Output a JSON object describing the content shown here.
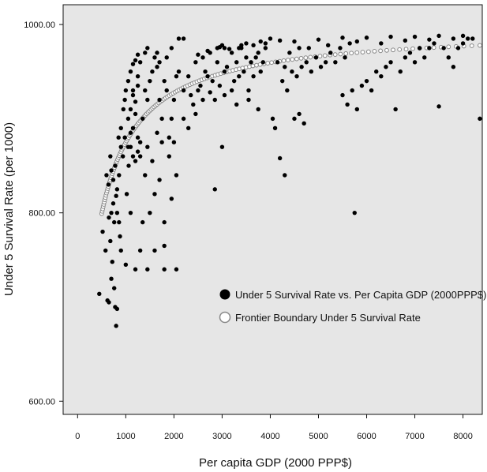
{
  "chart_data": {
    "type": "scatter",
    "title": "",
    "xlabel": "Per capita GDP (2000 PPP$)",
    "ylabel": "Under 5 Survival Rate (per 1000)",
    "xlim": [
      -300,
      8400
    ],
    "ylim": [
      586,
      1021
    ],
    "x_ticks": [
      "0",
      "1000",
      "2000",
      "3000",
      "4000",
      "5000",
      "6000",
      "7000",
      "8000"
    ],
    "y_ticks": [
      "600.00",
      "800.00",
      "1000.00"
    ],
    "grid": false,
    "legend_position": "lower-right",
    "series": [
      {
        "name": "Under 5 Survival Rate vs. Per Capita GDP (2000PPP$)",
        "color": "#000000",
        "marker": "filled-circle",
        "points": [
          [
            450,
            714
          ],
          [
            520,
            780
          ],
          [
            580,
            760
          ],
          [
            620,
            707
          ],
          [
            650,
            705
          ],
          [
            700,
            730
          ],
          [
            720,
            748
          ],
          [
            760,
            720
          ],
          [
            780,
            700
          ],
          [
            800,
            680
          ],
          [
            820,
            698
          ],
          [
            650,
            795
          ],
          [
            680,
            770
          ],
          [
            700,
            800
          ],
          [
            740,
            810
          ],
          [
            760,
            790
          ],
          [
            800,
            818
          ],
          [
            820,
            800
          ],
          [
            860,
            790
          ],
          [
            880,
            775
          ],
          [
            900,
            760
          ],
          [
            600,
            840
          ],
          [
            640,
            830
          ],
          [
            680,
            860
          ],
          [
            700,
            845
          ],
          [
            740,
            835
          ],
          [
            780,
            850
          ],
          [
            820,
            825
          ],
          [
            860,
            840
          ],
          [
            900,
            870
          ],
          [
            940,
            860
          ],
          [
            980,
            880
          ],
          [
            1000,
            745
          ],
          [
            1020,
            820
          ],
          [
            1060,
            850
          ],
          [
            1100,
            870
          ],
          [
            1150,
            890
          ],
          [
            1200,
            905
          ],
          [
            1250,
            880
          ],
          [
            1300,
            860
          ],
          [
            1350,
            900
          ],
          [
            1400,
            930
          ],
          [
            1450,
            920
          ],
          [
            1500,
            940
          ],
          [
            1550,
            950
          ],
          [
            1600,
            965
          ],
          [
            1650,
            955
          ],
          [
            1700,
            920
          ],
          [
            1750,
            900
          ],
          [
            1800,
            940
          ],
          [
            1850,
            930
          ],
          [
            1900,
            880
          ],
          [
            1950,
            900
          ],
          [
            2000,
            920
          ],
          [
            2050,
            945
          ],
          [
            2100,
            950
          ],
          [
            1200,
            740
          ],
          [
            1450,
            740
          ],
          [
            1800,
            740
          ],
          [
            2050,
            740
          ],
          [
            1800,
            765
          ],
          [
            1800,
            790
          ],
          [
            1950,
            815
          ],
          [
            2050,
            840
          ],
          [
            1100,
            800
          ],
          [
            1300,
            760
          ],
          [
            1350,
            790
          ],
          [
            1500,
            800
          ],
          [
            1600,
            820
          ],
          [
            1700,
            835
          ],
          [
            1050,
            900
          ],
          [
            1150,
            930
          ],
          [
            1250,
            945
          ],
          [
            1300,
            960
          ],
          [
            1400,
            970
          ],
          [
            1450,
            975
          ],
          [
            1650,
            970
          ],
          [
            1700,
            960
          ],
          [
            1850,
            965
          ],
          [
            1950,
            975
          ],
          [
            2100,
            985
          ],
          [
            2200,
            985
          ],
          [
            1600,
            760
          ],
          [
            1400,
            840
          ],
          [
            1450,
            870
          ],
          [
            1550,
            855
          ],
          [
            1650,
            885
          ],
          [
            1750,
            875
          ],
          [
            1900,
            860
          ],
          [
            2000,
            875
          ],
          [
            2200,
            900
          ],
          [
            2300,
            890
          ],
          [
            2400,
            915
          ],
          [
            2450,
            905
          ],
          [
            2500,
            930
          ],
          [
            2600,
            920
          ],
          [
            2650,
            950
          ],
          [
            2700,
            945
          ],
          [
            2800,
            940
          ],
          [
            2850,
            920
          ],
          [
            2900,
            960
          ],
          [
            2950,
            935
          ],
          [
            3000,
            870
          ],
          [
            3050,
            950
          ],
          [
            3100,
            955
          ],
          [
            3200,
            930
          ],
          [
            3250,
            940
          ],
          [
            3300,
            960
          ],
          [
            3350,
            945
          ],
          [
            3400,
            975
          ],
          [
            3450,
            950
          ],
          [
            3500,
            965
          ],
          [
            3550,
            930
          ],
          [
            3600,
            960
          ],
          [
            3650,
            945
          ],
          [
            3700,
            965
          ],
          [
            3750,
            970
          ],
          [
            3800,
            950
          ],
          [
            3850,
            960
          ],
          [
            3900,
            975
          ],
          [
            2300,
            945
          ],
          [
            2450,
            960
          ],
          [
            2600,
            965
          ],
          [
            2750,
            970
          ],
          [
            2900,
            975
          ],
          [
            3050,
            975
          ],
          [
            3200,
            970
          ],
          [
            3350,
            975
          ],
          [
            2850,
            825
          ],
          [
            4100,
            890
          ],
          [
            4200,
            858
          ],
          [
            4300,
            840
          ],
          [
            4500,
            900
          ],
          [
            4600,
            905
          ],
          [
            4700,
            895
          ],
          [
            4250,
            940
          ],
          [
            4350,
            930
          ],
          [
            4450,
            950
          ],
          [
            4550,
            945
          ],
          [
            4650,
            955
          ],
          [
            4750,
            960
          ],
          [
            4850,
            950
          ],
          [
            4950,
            965
          ],
          [
            5050,
            955
          ],
          [
            5150,
            960
          ],
          [
            5250,
            970
          ],
          [
            5350,
            960
          ],
          [
            5450,
            975
          ],
          [
            5550,
            965
          ],
          [
            5650,
            980
          ],
          [
            5750,
            800
          ],
          [
            5500,
            925
          ],
          [
            5600,
            915
          ],
          [
            5700,
            930
          ],
          [
            5800,
            910
          ],
          [
            5900,
            935
          ],
          [
            6000,
            940
          ],
          [
            6100,
            930
          ],
          [
            6200,
            950
          ],
          [
            6300,
            945
          ],
          [
            6400,
            955
          ],
          [
            6500,
            960
          ],
          [
            6600,
            910
          ],
          [
            6700,
            950
          ],
          [
            6800,
            965
          ],
          [
            6900,
            970
          ],
          [
            7000,
            960
          ],
          [
            7100,
            975
          ],
          [
            7200,
            965
          ],
          [
            7300,
            975
          ],
          [
            7400,
            980
          ],
          [
            7500,
            913
          ],
          [
            7600,
            975
          ],
          [
            7700,
            965
          ],
          [
            7800,
            955
          ],
          [
            7900,
            975
          ],
          [
            8000,
            980
          ],
          [
            8100,
            985
          ],
          [
            8200,
            985
          ],
          [
            8350,
            900
          ],
          [
            4000,
            985
          ],
          [
            4500,
            982
          ],
          [
            5000,
            984
          ],
          [
            5500,
            986
          ],
          [
            6000,
            986
          ],
          [
            6500,
            987
          ],
          [
            7000,
            987
          ],
          [
            7500,
            988
          ],
          [
            8000,
            988
          ],
          [
            4800,
            975
          ],
          [
            5200,
            978
          ],
          [
            5800,
            982
          ],
          [
            6300,
            980
          ],
          [
            6800,
            983
          ],
          [
            7300,
            984
          ],
          [
            7800,
            985
          ],
          [
            3000,
            978
          ],
          [
            3500,
            980
          ],
          [
            3800,
            982
          ],
          [
            4200,
            983
          ],
          [
            2500,
            968
          ],
          [
            2700,
            972
          ],
          [
            2950,
            976
          ],
          [
            3150,
            974
          ],
          [
            3400,
            978
          ],
          [
            3650,
            978
          ],
          [
            3900,
            980
          ],
          [
            4150,
            960
          ],
          [
            4400,
            970
          ],
          [
            4600,
            975
          ],
          [
            2200,
            930
          ],
          [
            2350,
            925
          ],
          [
            2550,
            935
          ],
          [
            2750,
            928
          ],
          [
            3050,
            925
          ],
          [
            3300,
            915
          ],
          [
            3550,
            920
          ],
          [
            3750,
            910
          ],
          [
            4050,
            900
          ],
          [
            4300,
            955
          ],
          [
            1100,
            910
          ],
          [
            1150,
            925
          ],
          [
            1200,
            918
          ],
          [
            1250,
            935
          ],
          [
            1050,
            870
          ],
          [
            1100,
            885
          ],
          [
            1150,
            860
          ],
          [
            1200,
            855
          ],
          [
            1250,
            865
          ],
          [
            1300,
            875
          ],
          [
            950,
            910
          ],
          [
            980,
            920
          ],
          [
            900,
            890
          ],
          [
            850,
            880
          ],
          [
            1000,
            930
          ],
          [
            1050,
            940
          ],
          [
            1100,
            950
          ],
          [
            1150,
            958
          ],
          [
            1200,
            962
          ],
          [
            1250,
            968
          ]
        ]
      },
      {
        "name": "Frontier Boundary Under 5 Survival Rate",
        "color": "#888888",
        "marker": "open-circle",
        "asymptote": 996,
        "coefficient": 1750,
        "x_start": 500,
        "x_end": 8350,
        "n_points": 140
      }
    ]
  }
}
